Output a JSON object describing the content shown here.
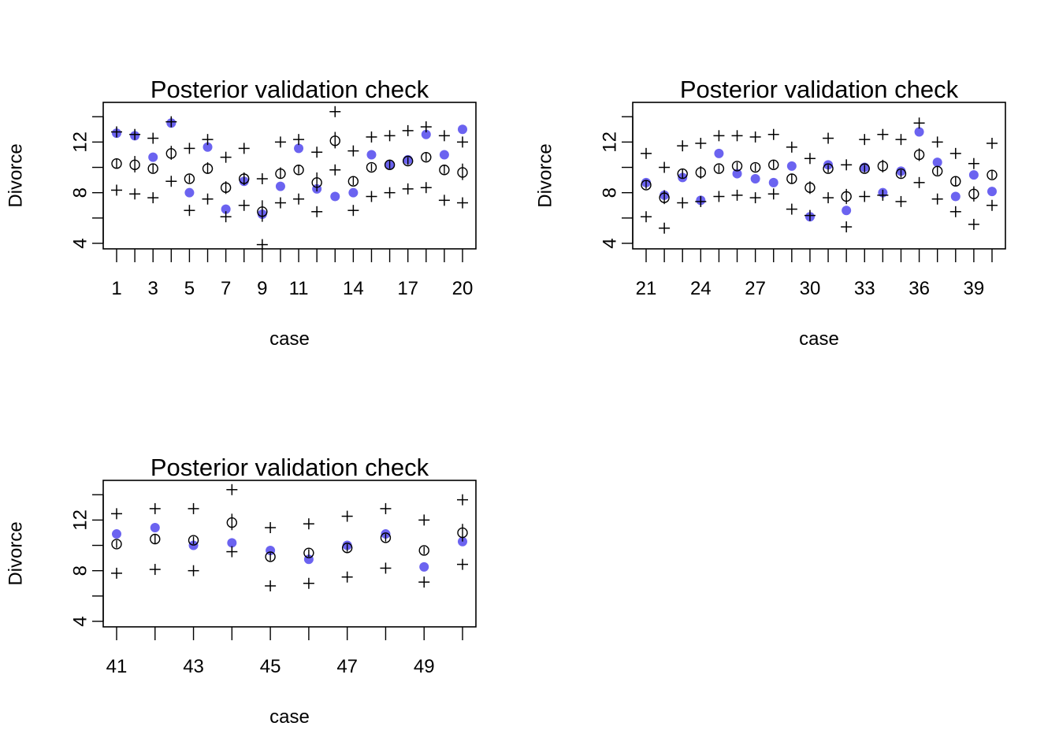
{
  "colors": {
    "observed": "#6b63f0",
    "ink": "#000000",
    "background": "#ffffff"
  },
  "chart_data": [
    {
      "type": "scatter",
      "title": "Posterior validation check",
      "xlabel": "case",
      "ylabel": "Divorce",
      "ylim": [
        4,
        14
      ],
      "yticks": [
        "4",
        "8",
        "12"
      ],
      "x": [
        1,
        2,
        3,
        4,
        5,
        6,
        7,
        8,
        9,
        10,
        11,
        12,
        13,
        14,
        15,
        16,
        17,
        18,
        19,
        20
      ],
      "xticklabels": [
        "1",
        "3",
        "5",
        "7",
        "9",
        "11",
        "14",
        "17",
        "20"
      ],
      "xtickpos": [
        1,
        3,
        5,
        7,
        9,
        11,
        14,
        17,
        20
      ],
      "series": [
        {
          "role": "observed",
          "marker": "filled-dot",
          "values": [
            12.7,
            12.5,
            10.8,
            13.5,
            8.0,
            11.6,
            6.7,
            8.9,
            6.3,
            8.5,
            11.5,
            8.3,
            7.7,
            8.0,
            11.0,
            10.2,
            10.6,
            12.6,
            11.0,
            13.0
          ]
        },
        {
          "role": "posterior-mean",
          "marker": "open-circle",
          "values": [
            10.3,
            10.2,
            9.9,
            11.1,
            9.1,
            9.9,
            8.4,
            9.1,
            6.5,
            9.5,
            9.8,
            8.8,
            12.1,
            8.9,
            10.0,
            10.2,
            10.5,
            10.8,
            9.8,
            9.6
          ]
        },
        {
          "role": "mean-interval",
          "marker": "vertical-segment",
          "low": [
            9.9,
            9.6,
            9.6,
            10.6,
            8.8,
            9.5,
            7.9,
            8.6,
            5.7,
            9.1,
            9.5,
            8.1,
            11.5,
            8.6,
            9.7,
            9.9,
            10.2,
            10.5,
            9.5,
            9.0
          ],
          "high": [
            10.7,
            10.9,
            10.3,
            11.7,
            9.4,
            10.4,
            8.9,
            9.6,
            7.4,
            10.0,
            10.2,
            9.6,
            12.8,
            9.3,
            10.3,
            10.6,
            10.8,
            11.2,
            10.2,
            10.3
          ]
        },
        {
          "role": "prediction-interval-upper",
          "marker": "plus",
          "values": [
            12.8,
            12.6,
            12.3,
            13.6,
            11.5,
            12.2,
            10.8,
            11.5,
            9.1,
            12.0,
            12.2,
            11.2,
            14.4,
            11.3,
            12.4,
            12.5,
            12.9,
            13.2,
            12.5,
            12.0
          ]
        },
        {
          "role": "prediction-interval-lower",
          "marker": "plus",
          "values": [
            8.2,
            7.9,
            7.6,
            8.9,
            6.6,
            7.5,
            6.1,
            7.0,
            3.9,
            7.2,
            7.5,
            6.5,
            9.8,
            6.6,
            7.7,
            8.0,
            8.3,
            8.4,
            7.4,
            7.2
          ]
        }
      ]
    },
    {
      "type": "scatter",
      "title": "Posterior validation check",
      "xlabel": "case",
      "ylabel": "Divorce",
      "ylim": [
        4,
        14
      ],
      "yticks": [
        "4",
        "8",
        "12"
      ],
      "x": [
        21,
        22,
        23,
        24,
        25,
        26,
        27,
        28,
        29,
        30,
        31,
        32,
        33,
        34,
        35,
        36,
        37,
        38,
        39,
        40
      ],
      "xticklabels": [
        "21",
        "24",
        "27",
        "30",
        "33",
        "36",
        "39"
      ],
      "xtickpos": [
        21,
        24,
        27,
        30,
        33,
        36,
        39
      ],
      "series": [
        {
          "role": "observed",
          "marker": "filled-dot",
          "values": [
            8.8,
            7.8,
            9.2,
            7.4,
            11.1,
            9.5,
            9.1,
            8.8,
            10.1,
            6.1,
            10.2,
            6.6,
            10.0,
            8.0,
            9.7,
            12.8,
            10.4,
            7.7,
            9.4,
            8.1
          ]
        },
        {
          "role": "posterior-mean",
          "marker": "open-circle",
          "values": [
            8.6,
            7.6,
            9.5,
            9.6,
            9.9,
            10.1,
            10.0,
            10.2,
            9.1,
            8.4,
            9.9,
            7.7,
            9.9,
            10.1,
            9.5,
            11.0,
            9.7,
            8.9,
            7.9,
            9.4
          ]
        },
        {
          "role": "mean-interval",
          "marker": "vertical-segment",
          "low": [
            8.3,
            7.1,
            9.1,
            9.1,
            9.6,
            9.8,
            9.7,
            9.9,
            8.7,
            7.9,
            9.6,
            7.1,
            9.6,
            9.6,
            9.2,
            10.5,
            9.4,
            8.5,
            7.3,
            9.1
          ],
          "high": [
            9.0,
            8.2,
            9.9,
            10.1,
            10.2,
            10.4,
            10.3,
            10.6,
            9.5,
            8.9,
            10.2,
            8.3,
            10.2,
            10.6,
            9.8,
            11.5,
            10.1,
            9.3,
            8.5,
            9.8
          ]
        },
        {
          "role": "prediction-interval-upper",
          "marker": "plus",
          "values": [
            11.1,
            10.0,
            11.7,
            11.9,
            12.5,
            12.5,
            12.4,
            12.6,
            11.6,
            10.7,
            12.3,
            10.2,
            12.2,
            12.6,
            12.2,
            13.5,
            12.0,
            11.1,
            10.3,
            11.9
          ]
        },
        {
          "role": "prediction-interval-lower",
          "marker": "plus",
          "values": [
            6.1,
            5.2,
            7.2,
            7.3,
            7.7,
            7.8,
            7.6,
            7.9,
            6.7,
            6.2,
            7.6,
            5.3,
            7.7,
            7.8,
            7.3,
            8.8,
            7.5,
            6.5,
            5.5,
            7.0
          ]
        }
      ]
    },
    {
      "type": "scatter",
      "title": "Posterior validation check",
      "xlabel": "case",
      "ylabel": "Divorce",
      "ylim": [
        4,
        14
      ],
      "yticks": [
        "4",
        "8",
        "12"
      ],
      "x": [
        41,
        42,
        43,
        44,
        45,
        46,
        47,
        48,
        49,
        50
      ],
      "xticklabels": [
        "41",
        "43",
        "45",
        "47",
        "49"
      ],
      "xtickpos": [
        41,
        43,
        45,
        47,
        49
      ],
      "series": [
        {
          "role": "observed",
          "marker": "filled-dot",
          "values": [
            10.9,
            11.4,
            10.0,
            10.2,
            9.6,
            8.9,
            10.0,
            10.9,
            8.3,
            10.3
          ]
        },
        {
          "role": "posterior-mean",
          "marker": "open-circle",
          "values": [
            10.1,
            10.5,
            10.4,
            11.8,
            9.1,
            9.4,
            9.8,
            10.6,
            9.6,
            11.0
          ]
        },
        {
          "role": "mean-interval",
          "marker": "vertical-segment",
          "low": [
            9.8,
            10.1,
            10.1,
            11.2,
            8.8,
            9.1,
            9.5,
            10.3,
            9.3,
            10.3
          ],
          "high": [
            10.4,
            10.9,
            10.7,
            12.5,
            9.4,
            9.7,
            10.1,
            10.9,
            9.9,
            11.7
          ]
        },
        {
          "role": "prediction-interval-upper",
          "marker": "plus",
          "values": [
            12.5,
            12.9,
            12.9,
            14.4,
            11.4,
            11.7,
            12.3,
            12.9,
            12.0,
            13.6
          ]
        },
        {
          "role": "prediction-interval-lower",
          "marker": "plus",
          "values": [
            7.8,
            8.1,
            8.0,
            9.5,
            6.8,
            7.0,
            7.5,
            8.2,
            7.1,
            8.5
          ]
        }
      ]
    }
  ]
}
